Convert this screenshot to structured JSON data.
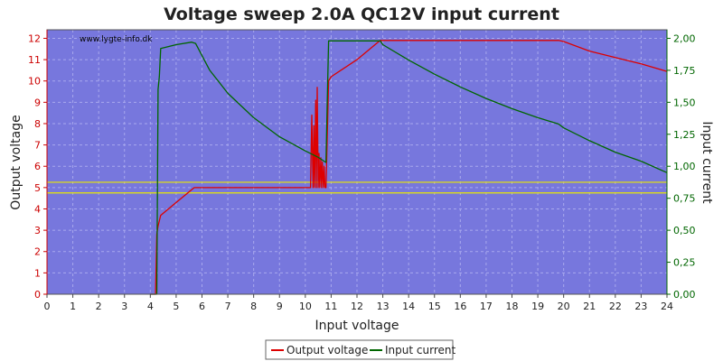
{
  "chart_data": {
    "type": "line",
    "title": "Voltage sweep 2.0A QC12V input current",
    "xlabel": "Input voltage",
    "ylabel_left": "Output voltage",
    "ylabel_right": "Input current",
    "watermark": "www.lygte-info.dk",
    "xlim": [
      0,
      24
    ],
    "ylim_left": [
      0,
      12.4
    ],
    "ylim_right": [
      0,
      2.0667
    ],
    "x_ticks": [
      "0",
      "1",
      "2",
      "3",
      "4",
      "5",
      "6",
      "7",
      "8",
      "9",
      "10",
      "11",
      "12",
      "13",
      "14",
      "15",
      "16",
      "17",
      "18",
      "19",
      "20",
      "21",
      "22",
      "23",
      "24"
    ],
    "y_left_ticks": [
      "0",
      "1",
      "2",
      "3",
      "4",
      "5",
      "6",
      "7",
      "8",
      "9",
      "10",
      "11",
      "12"
    ],
    "y_right_ticks": [
      "0,00",
      "0,25",
      "0,50",
      "0,75",
      "1,00",
      "1,25",
      "1,50",
      "1,75",
      "2,00"
    ],
    "grid": true,
    "legend_position": "bottom",
    "colors": {
      "plot_bg": "#7777dd",
      "grid": "#a8a8ee",
      "output_voltage": "#dd0000",
      "input_current": "#006600",
      "limit_lines": "#e8e800",
      "left_axis": "#cc0000",
      "right_axis": "#006600"
    },
    "limit_lines": [
      4.75,
      5.25
    ],
    "series": [
      {
        "name": "Output voltage",
        "axis": "left",
        "x": [
          4.0,
          4.2,
          4.25,
          4.3,
          4.4,
          5.0,
          5.7,
          8.0,
          10.2,
          10.25,
          10.3,
          10.33,
          10.36,
          10.4,
          10.43,
          10.46,
          10.5,
          10.53,
          10.56,
          10.6,
          10.63,
          10.66,
          10.7,
          10.73,
          10.76,
          10.8,
          10.9,
          11.0,
          12.0,
          12.9,
          13.5,
          16.0,
          19.8,
          20.0,
          21.0,
          22.0,
          23.0,
          24.0
        ],
        "y": [
          0,
          0,
          2.8,
          3.2,
          3.7,
          4.3,
          5.0,
          5.0,
          5.0,
          8.4,
          5.0,
          7.9,
          5.0,
          9.1,
          5.0,
          9.7,
          5.0,
          6.6,
          5.0,
          6.4,
          5.0,
          6.2,
          5.0,
          6.0,
          5.0,
          5.0,
          10.0,
          10.2,
          11.0,
          11.9,
          11.9,
          11.9,
          11.9,
          11.85,
          11.4,
          11.1,
          10.8,
          10.45
        ]
      },
      {
        "name": "Input current",
        "axis": "right",
        "x": [
          4.0,
          4.25,
          4.3,
          4.35,
          4.4,
          5.0,
          5.6,
          5.75,
          6.3,
          7.0,
          8.0,
          9.0,
          10.0,
          10.5,
          10.8,
          10.85,
          10.9,
          11.0,
          12.0,
          12.9,
          13.0,
          14.0,
          15.0,
          16.0,
          17.0,
          18.0,
          19.0,
          19.8,
          20.0,
          21.0,
          22.0,
          23.0,
          24.0
        ],
        "y": [
          0,
          0,
          1.6,
          1.7,
          1.92,
          1.95,
          1.97,
          1.96,
          1.75,
          1.57,
          1.38,
          1.23,
          1.12,
          1.07,
          1.03,
          1.5,
          1.98,
          1.98,
          1.98,
          1.98,
          1.95,
          1.83,
          1.72,
          1.62,
          1.53,
          1.45,
          1.38,
          1.33,
          1.3,
          1.2,
          1.11,
          1.04,
          0.95
        ]
      }
    ]
  }
}
